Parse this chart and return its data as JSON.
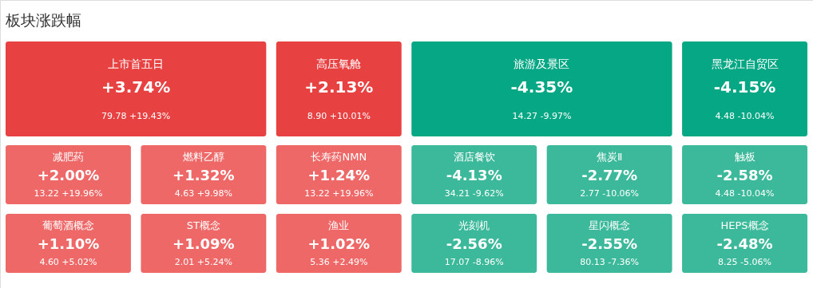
{
  "chart_data": {
    "type": "other",
    "title": "板块涨跌幅",
    "categories": [
      "上市首五日",
      "高压氧舱",
      "旅游及景区",
      "黑龙江自贸区",
      "减肥药",
      "燃料乙醇",
      "长寿药NMN",
      "酒店餐饮",
      "焦炭Ⅱ",
      "触板",
      "葡萄酒概念",
      "ST概念",
      "渔业",
      "光刻机",
      "星闪概念",
      "HEPS概念"
    ],
    "values": [
      3.74,
      2.13,
      -4.35,
      -4.15,
      2.0,
      1.32,
      1.24,
      -4.13,
      -2.77,
      -2.58,
      1.1,
      1.09,
      1.02,
      -2.56,
      -2.55,
      -2.48
    ],
    "value_labels": [
      "+3.74%",
      "+2.13%",
      "-4.35%",
      "-4.15%",
      "+2.00%",
      "+1.32%",
      "+1.24%",
      "-4.13%",
      "-2.77%",
      "-2.58%",
      "+1.10%",
      "+1.09%",
      "+1.02%",
      "-2.56%",
      "-2.55%",
      "-2.48%"
    ],
    "annotations": [
      "79.78 +19.43%",
      "8.90 +10.01%",
      "14.27 -9.97%",
      "4.48 -10.04%",
      "13.22 +19.96%",
      "4.63 +9.98%",
      "13.22 +19.96%",
      "34.21 -9.62%",
      "2.77 -10.06%",
      "4.48 -10.04%",
      "4.60 +5.02%",
      "2.01 +5.24%",
      "5.36 +2.49%",
      "17.07 -8.96%",
      "80.13 -7.36%",
      "8.25 -5.06%"
    ],
    "colors": [
      "#e84142",
      "#e84142",
      "#06a784",
      "#06a784",
      "#ee6868",
      "#ee6868",
      "#ee6868",
      "#3bb99a",
      "#3bb99a",
      "#3bb99a",
      "#ee6868",
      "#ee6868",
      "#ee6868",
      "#3bb99a",
      "#3bb99a",
      "#3bb99a"
    ]
  }
}
